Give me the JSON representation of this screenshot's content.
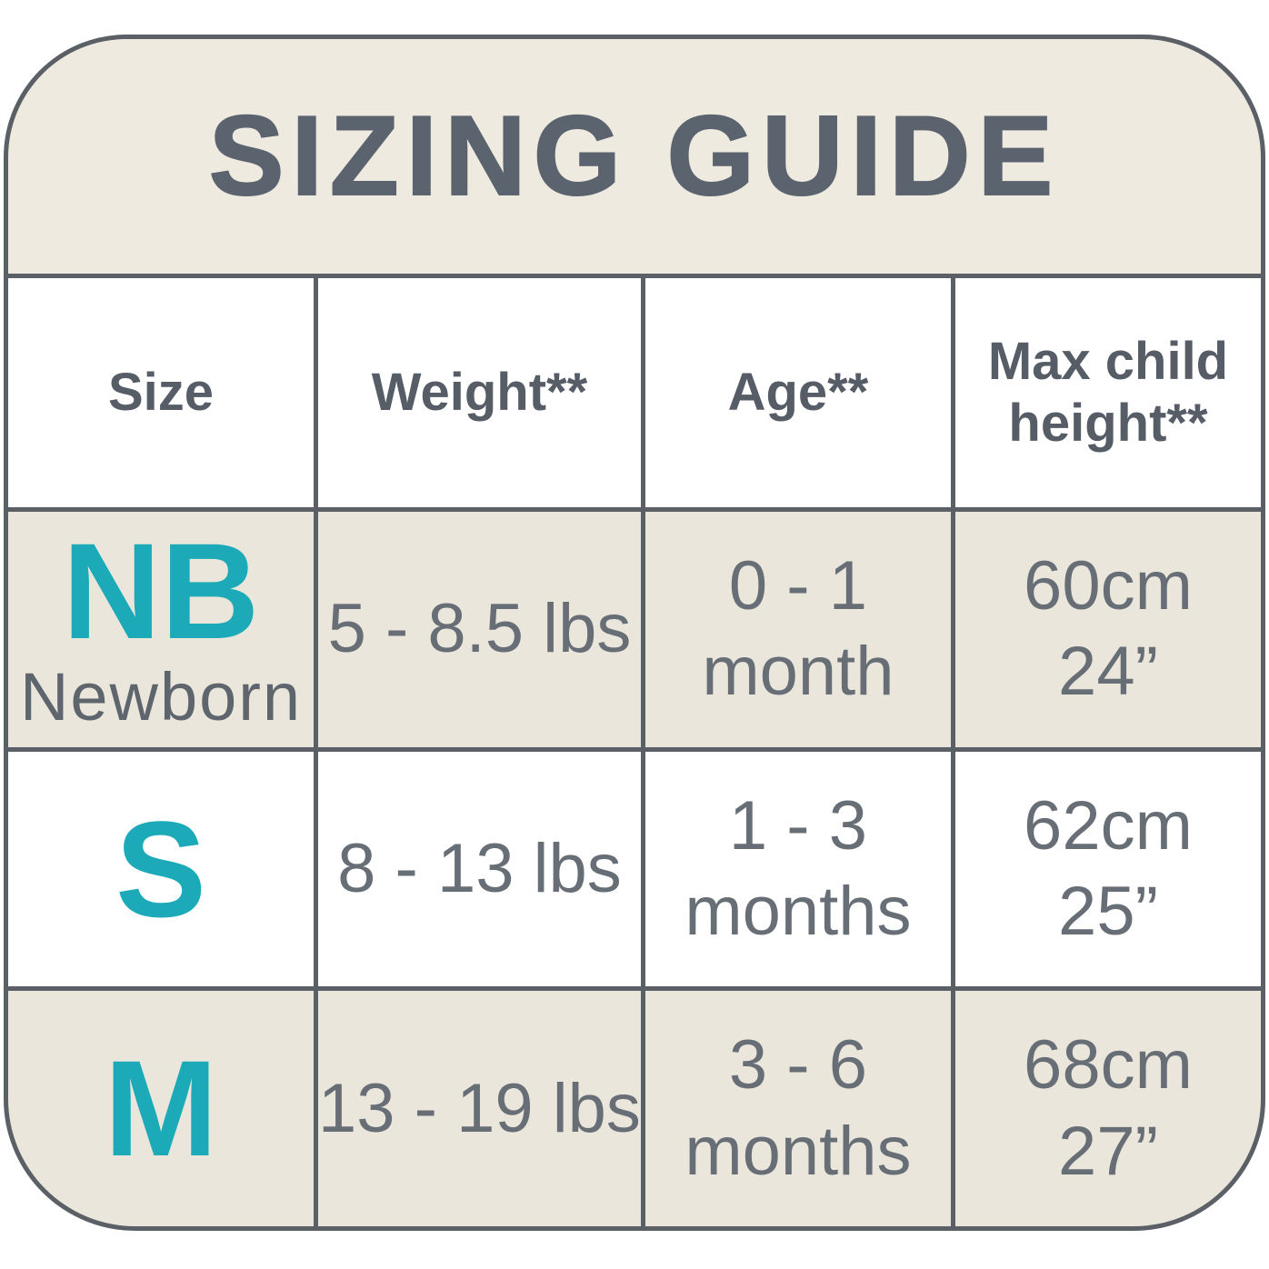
{
  "title": "SIZING GUIDE",
  "colors": {
    "accent_teal": "#1DAAB8",
    "line_and_border": "#5A6065",
    "title_text": "#5A636E",
    "header_text": "#565D66",
    "data_text": "#686E76",
    "beige_background": "#EAE6DB",
    "white_background": "#FFFFFF"
  },
  "table": {
    "columns": [
      "Size",
      "Weight**",
      "Age**",
      "Max child height**"
    ],
    "rows": [
      {
        "size_abbr": "NB",
        "size_label": "Newborn",
        "weight": "5 - 8.5 lbs",
        "age_line1": "0 - 1",
        "age_line2": "month",
        "height_cm": "60cm",
        "height_in": "24”"
      },
      {
        "size_abbr": "S",
        "size_label": "",
        "weight": "8 - 13 lbs",
        "age_line1": "1 - 3",
        "age_line2": "months",
        "height_cm": "62cm",
        "height_in": "25”"
      },
      {
        "size_abbr": "M",
        "size_label": "",
        "weight": "13 - 19 lbs",
        "age_line1": "3 - 6",
        "age_line2": "months",
        "height_cm": "68cm",
        "height_in": "27”"
      }
    ]
  },
  "chart_data": {
    "type": "table",
    "title": "SIZING GUIDE",
    "columns": [
      "Size",
      "Weight**",
      "Age**",
      "Max child height**"
    ],
    "rows": [
      [
        "NB (Newborn)",
        "5 - 8.5 lbs",
        "0 - 1 month",
        "60cm / 24\""
      ],
      [
        "S",
        "8 - 13 lbs",
        "1 - 3 months",
        "62cm / 25\""
      ],
      [
        "M",
        "13 - 19 lbs",
        "3 - 6 months",
        "68cm / 27\""
      ]
    ]
  }
}
